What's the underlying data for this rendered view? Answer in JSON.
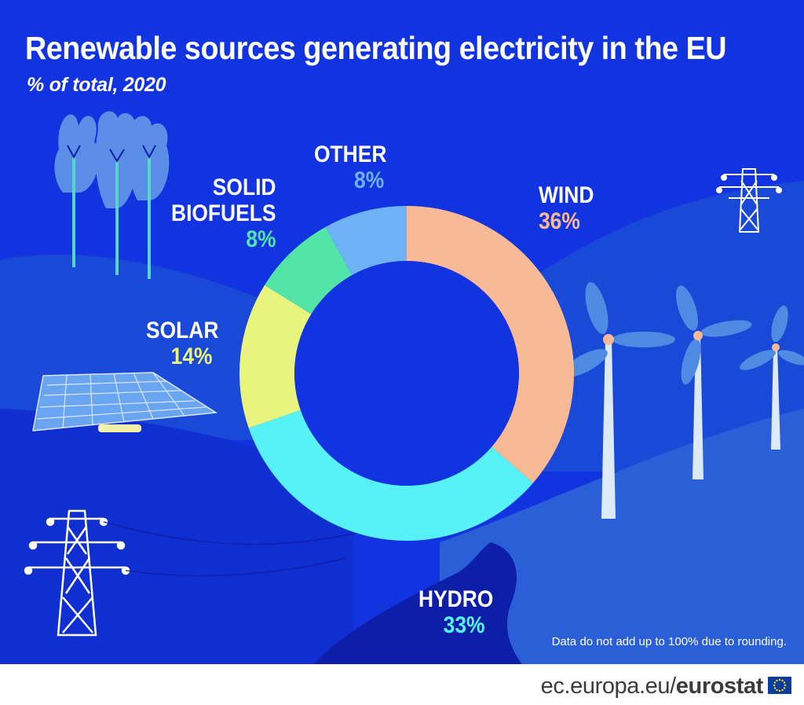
{
  "header": {
    "title": "Renewable sources generating electricity in the EU",
    "subtitle": "% of total, 2020"
  },
  "chart_data": {
    "type": "pie",
    "title": "Renewable sources generating electricity in the EU",
    "subtitle": "% of total, 2020",
    "donut": true,
    "start": "top",
    "direction": "clockwise",
    "slices": [
      {
        "name": "WIND",
        "value": 36,
        "label": "36%",
        "color": "#f8b996"
      },
      {
        "name": "HYDRO",
        "value": 33,
        "label": "33%",
        "color": "#56f2f7"
      },
      {
        "name": "SOLAR",
        "value": 14,
        "label": "14%",
        "color": "#e8f47e"
      },
      {
        "name": "SOLID BIOFUELS",
        "value": 8,
        "label": "8%",
        "color": "#52e5a7"
      },
      {
        "name": "OTHER",
        "value": 8,
        "label": "8%",
        "color": "#6fb1f5"
      }
    ],
    "note": "Data do not add up to 100% due to rounding."
  },
  "labels": {
    "wind": {
      "name": "WIND",
      "value": "36%"
    },
    "hydro": {
      "name": "HYDRO",
      "value": "33%"
    },
    "solar": {
      "name": "SOLAR",
      "value": "14%"
    },
    "biofuels": {
      "name_line1": "SOLID",
      "name_line2": "BIOFUELS",
      "value": "8%"
    },
    "other": {
      "name": "OTHER",
      "value": "8%"
    }
  },
  "footer": {
    "url_prefix": "ec.europa.eu/",
    "url_brand": "eurostat"
  },
  "colors": {
    "background": "#1033d9",
    "hill_light": "#2a5fd8",
    "river": "#0d1ea8",
    "trees": "#5b8ee6",
    "turbine_blades": "#4f8be3"
  },
  "icons": [
    "tree-icon",
    "solar-panel-icon",
    "wind-turbine-icon",
    "power-pylon-icon",
    "eu-flag-icon"
  ]
}
